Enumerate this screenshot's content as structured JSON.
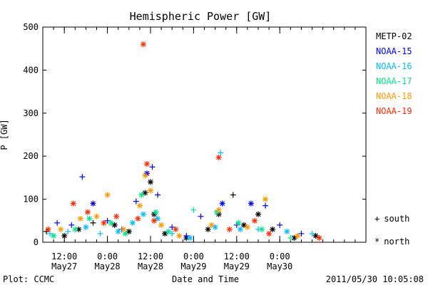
{
  "chart_data": {
    "type": "scatter",
    "title": "Hemispheric Power [GW]",
    "ylabel": "P [GW]",
    "xlabel": "Date and Time",
    "ylim": [
      0,
      500
    ],
    "yticks": [
      0,
      100,
      200,
      300,
      400,
      500
    ],
    "xlim": [
      "2011-05-27 06:00",
      "2011-05-31 00:00"
    ],
    "xticks": [
      {
        "time": "2011-05-27 12:00",
        "line1": "12:00",
        "line2": "May27"
      },
      {
        "time": "2011-05-28 00:00",
        "line1": "0:00",
        "line2": "May28"
      },
      {
        "time": "2011-05-28 12:00",
        "line1": "12:00",
        "line2": "May28"
      },
      {
        "time": "2011-05-29 00:00",
        "line1": "0:00",
        "line2": "May29"
      },
      {
        "time": "2011-05-29 12:00",
        "line1": "12:00",
        "line2": "May29"
      },
      {
        "time": "2011-05-30 00:00",
        "line1": "0:00",
        "line2": "May30"
      }
    ],
    "marker_legend": [
      {
        "symbol": "+",
        "label": "south"
      },
      {
        "symbol": "*",
        "label": "north"
      }
    ],
    "series": [
      {
        "name": "METP-02",
        "color": "#000000",
        "points": [
          {
            "t": "2011-05-27 07:00",
            "v": 25,
            "m": "+"
          },
          {
            "t": "2011-05-27 12:00",
            "v": 15,
            "m": "*"
          },
          {
            "t": "2011-05-27 16:00",
            "v": 30,
            "m": "*"
          },
          {
            "t": "2011-05-27 20:00",
            "v": 45,
            "m": "+"
          },
          {
            "t": "2011-05-28 02:00",
            "v": 40,
            "m": "*"
          },
          {
            "t": "2011-05-28 06:00",
            "v": 25,
            "m": "*"
          },
          {
            "t": "2011-05-28 10:30",
            "v": 115,
            "m": "*"
          },
          {
            "t": "2011-05-28 12:00",
            "v": 140,
            "m": "*"
          },
          {
            "t": "2011-05-28 13:00",
            "v": 65,
            "m": "*"
          },
          {
            "t": "2011-05-28 16:00",
            "v": 20,
            "m": "*"
          },
          {
            "t": "2011-05-28 22:00",
            "v": 10,
            "m": "*"
          },
          {
            "t": "2011-05-29 04:00",
            "v": 30,
            "m": "*"
          },
          {
            "t": "2011-05-29 07:00",
            "v": 65,
            "m": "*"
          },
          {
            "t": "2011-05-29 11:00",
            "v": 110,
            "m": "+"
          },
          {
            "t": "2011-05-29 14:00",
            "v": 40,
            "m": "*"
          },
          {
            "t": "2011-05-29 18:00",
            "v": 65,
            "m": "*"
          },
          {
            "t": "2011-05-29 22:00",
            "v": 30,
            "m": "*"
          },
          {
            "t": "2011-05-30 04:00",
            "v": 10,
            "m": "*"
          },
          {
            "t": "2011-05-30 10:00",
            "v": 15,
            "m": "*"
          }
        ]
      },
      {
        "name": "NOAA-15",
        "color": "#0000ff",
        "points": [
          {
            "t": "2011-05-27 10:00",
            "v": 45,
            "m": "+"
          },
          {
            "t": "2011-05-27 14:00",
            "v": 40,
            "m": "+"
          },
          {
            "t": "2011-05-27 17:00",
            "v": 152,
            "m": "+"
          },
          {
            "t": "2011-05-27 20:00",
            "v": 90,
            "m": "*"
          },
          {
            "t": "2011-05-28 00:00",
            "v": 50,
            "m": "+"
          },
          {
            "t": "2011-05-28 04:00",
            "v": 30,
            "m": "+"
          },
          {
            "t": "2011-05-28 08:00",
            "v": 95,
            "m": "+"
          },
          {
            "t": "2011-05-28 11:00",
            "v": 160,
            "m": "*"
          },
          {
            "t": "2011-05-28 12:30",
            "v": 175,
            "m": "+"
          },
          {
            "t": "2011-05-28 14:00",
            "v": 110,
            "m": "+"
          },
          {
            "t": "2011-05-28 18:00",
            "v": 35,
            "m": "+"
          },
          {
            "t": "2011-05-28 22:00",
            "v": 15,
            "m": "+"
          },
          {
            "t": "2011-05-29 02:00",
            "v": 60,
            "m": "+"
          },
          {
            "t": "2011-05-29 08:00",
            "v": 90,
            "m": "*"
          },
          {
            "t": "2011-05-29 12:00",
            "v": 40,
            "m": "+"
          },
          {
            "t": "2011-05-29 16:00",
            "v": 90,
            "m": "*"
          },
          {
            "t": "2011-05-29 20:00",
            "v": 85,
            "m": "+"
          },
          {
            "t": "2011-05-30 00:00",
            "v": 40,
            "m": "+"
          },
          {
            "t": "2011-05-30 06:00",
            "v": 20,
            "m": "+"
          }
        ]
      },
      {
        "name": "NOAA-16",
        "color": "#00bfff",
        "points": [
          {
            "t": "2011-05-27 08:00",
            "v": 20,
            "m": "+"
          },
          {
            "t": "2011-05-27 13:00",
            "v": 25,
            "m": "+"
          },
          {
            "t": "2011-05-27 18:00",
            "v": 35,
            "m": "*"
          },
          {
            "t": "2011-05-27 22:00",
            "v": 20,
            "m": "+"
          },
          {
            "t": "2011-05-28 03:00",
            "v": 25,
            "m": "*"
          },
          {
            "t": "2011-05-28 07:00",
            "v": 45,
            "m": "*"
          },
          {
            "t": "2011-05-28 10:00",
            "v": 65,
            "m": "*"
          },
          {
            "t": "2011-05-28 14:00",
            "v": 55,
            "m": "*"
          },
          {
            "t": "2011-05-28 18:00",
            "v": 20,
            "m": "+"
          },
          {
            "t": "2011-05-28 23:00",
            "v": 10,
            "m": "*"
          },
          {
            "t": "2011-05-29 06:00",
            "v": 35,
            "m": "*"
          },
          {
            "t": "2011-05-29 07:30",
            "v": 208,
            "m": "+"
          },
          {
            "t": "2011-05-29 13:00",
            "v": 30,
            "m": "*"
          },
          {
            "t": "2011-05-29 18:00",
            "v": 30,
            "m": "+"
          },
          {
            "t": "2011-05-30 02:00",
            "v": 25,
            "m": "*"
          },
          {
            "t": "2011-05-30 09:00",
            "v": 20,
            "m": "+"
          }
        ]
      },
      {
        "name": "NOAA-17",
        "color": "#00e58c",
        "points": [
          {
            "t": "2011-05-27 09:00",
            "v": 15,
            "m": "*"
          },
          {
            "t": "2011-05-27 15:00",
            "v": 30,
            "m": "*"
          },
          {
            "t": "2011-05-27 19:00",
            "v": 55,
            "m": "*"
          },
          {
            "t": "2011-05-28 01:00",
            "v": 45,
            "m": "*"
          },
          {
            "t": "2011-05-28 05:00",
            "v": 20,
            "m": "*"
          },
          {
            "t": "2011-05-28 09:30",
            "v": 110,
            "m": "*"
          },
          {
            "t": "2011-05-28 13:30",
            "v": 70,
            "m": "*"
          },
          {
            "t": "2011-05-28 17:00",
            "v": 25,
            "m": "*"
          },
          {
            "t": "2011-05-29 00:00",
            "v": 75,
            "m": "+"
          },
          {
            "t": "2011-05-29 06:30",
            "v": 70,
            "m": "*"
          },
          {
            "t": "2011-05-29 12:30",
            "v": 45,
            "m": "*"
          },
          {
            "t": "2011-05-29 19:00",
            "v": 30,
            "m": "*"
          },
          {
            "t": "2011-05-30 03:00",
            "v": 10,
            "m": "+"
          }
        ]
      },
      {
        "name": "NOAA-18",
        "color": "#ff9900",
        "points": [
          {
            "t": "2011-05-27 11:00",
            "v": 30,
            "m": "*"
          },
          {
            "t": "2011-05-27 16:30",
            "v": 55,
            "m": "*"
          },
          {
            "t": "2011-05-27 21:00",
            "v": 60,
            "m": "*"
          },
          {
            "t": "2011-05-28 00:00",
            "v": 110,
            "m": "*"
          },
          {
            "t": "2011-05-28 04:30",
            "v": 30,
            "m": "*"
          },
          {
            "t": "2011-05-28 09:00",
            "v": 85,
            "m": "*"
          },
          {
            "t": "2011-05-28 10:30",
            "v": 155,
            "m": "*"
          },
          {
            "t": "2011-05-28 12:00",
            "v": 120,
            "m": "*"
          },
          {
            "t": "2011-05-28 15:00",
            "v": 40,
            "m": "*"
          },
          {
            "t": "2011-05-28 20:00",
            "v": 15,
            "m": "*"
          },
          {
            "t": "2011-05-29 05:00",
            "v": 40,
            "m": "*"
          },
          {
            "t": "2011-05-29 07:00",
            "v": 75,
            "m": "*"
          },
          {
            "t": "2011-05-29 15:00",
            "v": 35,
            "m": "*"
          },
          {
            "t": "2011-05-29 20:00",
            "v": 100,
            "m": "*"
          },
          {
            "t": "2011-05-30 05:00",
            "v": 15,
            "m": "*"
          }
        ]
      },
      {
        "name": "NOAA-19",
        "color": "#ff2a00",
        "points": [
          {
            "t": "2011-05-27 07:30",
            "v": 30,
            "m": "*"
          },
          {
            "t": "2011-05-27 14:30",
            "v": 90,
            "m": "*"
          },
          {
            "t": "2011-05-27 18:30",
            "v": 70,
            "m": "*"
          },
          {
            "t": "2011-05-27 23:00",
            "v": 45,
            "m": "*"
          },
          {
            "t": "2011-05-28 02:30",
            "v": 60,
            "m": "*"
          },
          {
            "t": "2011-05-28 08:30",
            "v": 55,
            "m": "*"
          },
          {
            "t": "2011-05-28 10:00",
            "v": 460,
            "m": "*"
          },
          {
            "t": "2011-05-28 11:00",
            "v": 182,
            "m": "*"
          },
          {
            "t": "2011-05-28 13:00",
            "v": 50,
            "m": "*"
          },
          {
            "t": "2011-05-28 19:00",
            "v": 30,
            "m": "*"
          },
          {
            "t": "2011-05-29 07:00",
            "v": 197,
            "m": "*"
          },
          {
            "t": "2011-05-29 10:00",
            "v": 30,
            "m": "*"
          },
          {
            "t": "2011-05-29 17:00",
            "v": 50,
            "m": "*"
          },
          {
            "t": "2011-05-29 21:00",
            "v": 20,
            "m": "*"
          },
          {
            "t": "2011-05-30 11:00",
            "v": 10,
            "m": "*"
          }
        ]
      }
    ]
  },
  "footer": {
    "left": "Plot: CCMC",
    "center": "Date and Time",
    "right": "2011/05/30 10:05:08"
  }
}
